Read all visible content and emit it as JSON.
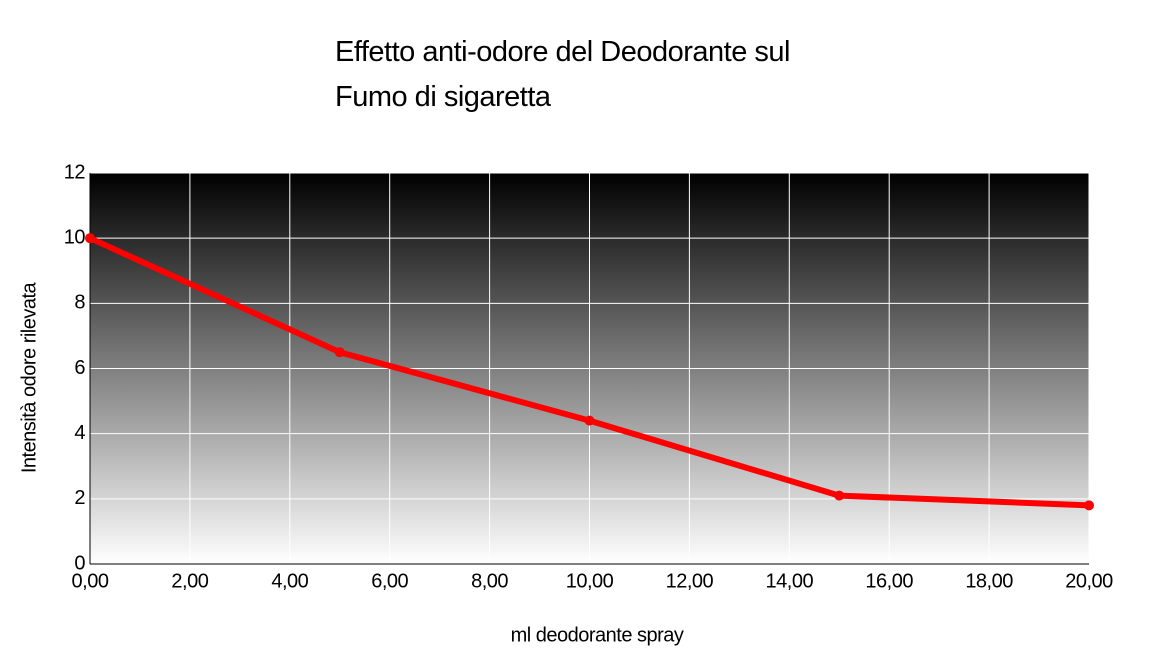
{
  "chart_data": {
    "type": "line",
    "title": "Effetto anti-odore del Deodorante sul\nFumo di sigaretta",
    "x_label": "ml deodorante spray",
    "y_label": "Intensità odore rilevata",
    "x": [
      0,
      5,
      10,
      15,
      20
    ],
    "series": [
      {
        "color": "#ff0000",
        "values": [
          10,
          6.5,
          4.4,
          2.1,
          1.8
        ]
      }
    ],
    "xlim": [
      0,
      20
    ],
    "xticks": [
      {
        "value": 0,
        "label": "0,00"
      },
      {
        "value": 2,
        "label": "2,00"
      },
      {
        "value": 4,
        "label": "4,00"
      },
      {
        "value": 6,
        "label": "6,00"
      },
      {
        "value": 8,
        "label": "8,00"
      },
      {
        "value": 10,
        "label": "10,00"
      },
      {
        "value": 12,
        "label": "12,00"
      },
      {
        "value": 14,
        "label": "14,00"
      },
      {
        "value": 16,
        "label": "16,00"
      },
      {
        "value": 18,
        "label": "18,00"
      },
      {
        "value": 20,
        "label": "20,00"
      }
    ],
    "ylim": [
      0,
      12
    ],
    "yticks": [
      0,
      2,
      4,
      6,
      8,
      10,
      12
    ],
    "grid": true
  }
}
